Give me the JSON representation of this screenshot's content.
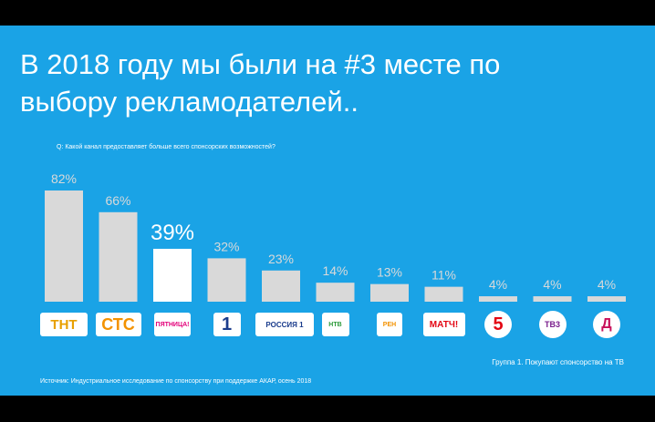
{
  "slide": {
    "title_line1": "В 2018 году мы были на #3 месте по",
    "title_line2": "выбору рекламодателей..",
    "question": "Q: Какой канал предоставляет больше всего спонсорских возможностей?",
    "group_note": "Группа 1. Покупают спонсорство на ТВ",
    "source": "Источник: Индустриальное исследование по спонсорству при поддержке АКАР, осень 2018"
  },
  "colors": {
    "background": "#1aa3e6",
    "bar_default": "#d9d9d9",
    "bar_highlight": "#ffffff",
    "label_default": "#d9d9d9",
    "label_highlight": "#ffffff"
  },
  "logos": [
    {
      "name": "tnt-logo",
      "text": "ТНТ"
    },
    {
      "name": "sts-logo",
      "text": "СТС"
    },
    {
      "name": "pyatnitsa-logo",
      "text": "ПЯТНИЦА!"
    },
    {
      "name": "perviy-logo",
      "text": "1"
    },
    {
      "name": "rossiya1-logo",
      "text": "РОССИЯ 1"
    },
    {
      "name": "ntv-logo",
      "text": "НТВ"
    },
    {
      "name": "ren-logo",
      "text": "РЕН"
    },
    {
      "name": "match-logo",
      "text": "МАТЧ!"
    },
    {
      "name": "pyatiy-logo",
      "text": "5"
    },
    {
      "name": "tv3-logo",
      "text": "ТВ3"
    },
    {
      "name": "domashniy-logo",
      "text": "Д"
    }
  ],
  "chart_data": {
    "type": "bar",
    "categories": [
      "ТНТ",
      "СТС",
      "ПЯТНИЦА!",
      "Первый",
      "Россия 1",
      "НТВ",
      "РЕН ТВ",
      "МАТЧ!",
      "Пятый канал",
      "ТВ3",
      "Домашний"
    ],
    "values": [
      82,
      66,
      39,
      32,
      23,
      14,
      13,
      11,
      4,
      4,
      4
    ],
    "labels": [
      "82%",
      "66%",
      "39%",
      "32%",
      "23%",
      "14%",
      "13%",
      "11%",
      "4%",
      "4%",
      "4%"
    ],
    "highlight_index": 2,
    "title": "Q: Какой канал предоставляет больше всего спонсорских возможностей?",
    "xlabel": "",
    "ylabel": "",
    "ylim": [
      0,
      100
    ],
    "grid": false,
    "legend": "none"
  }
}
